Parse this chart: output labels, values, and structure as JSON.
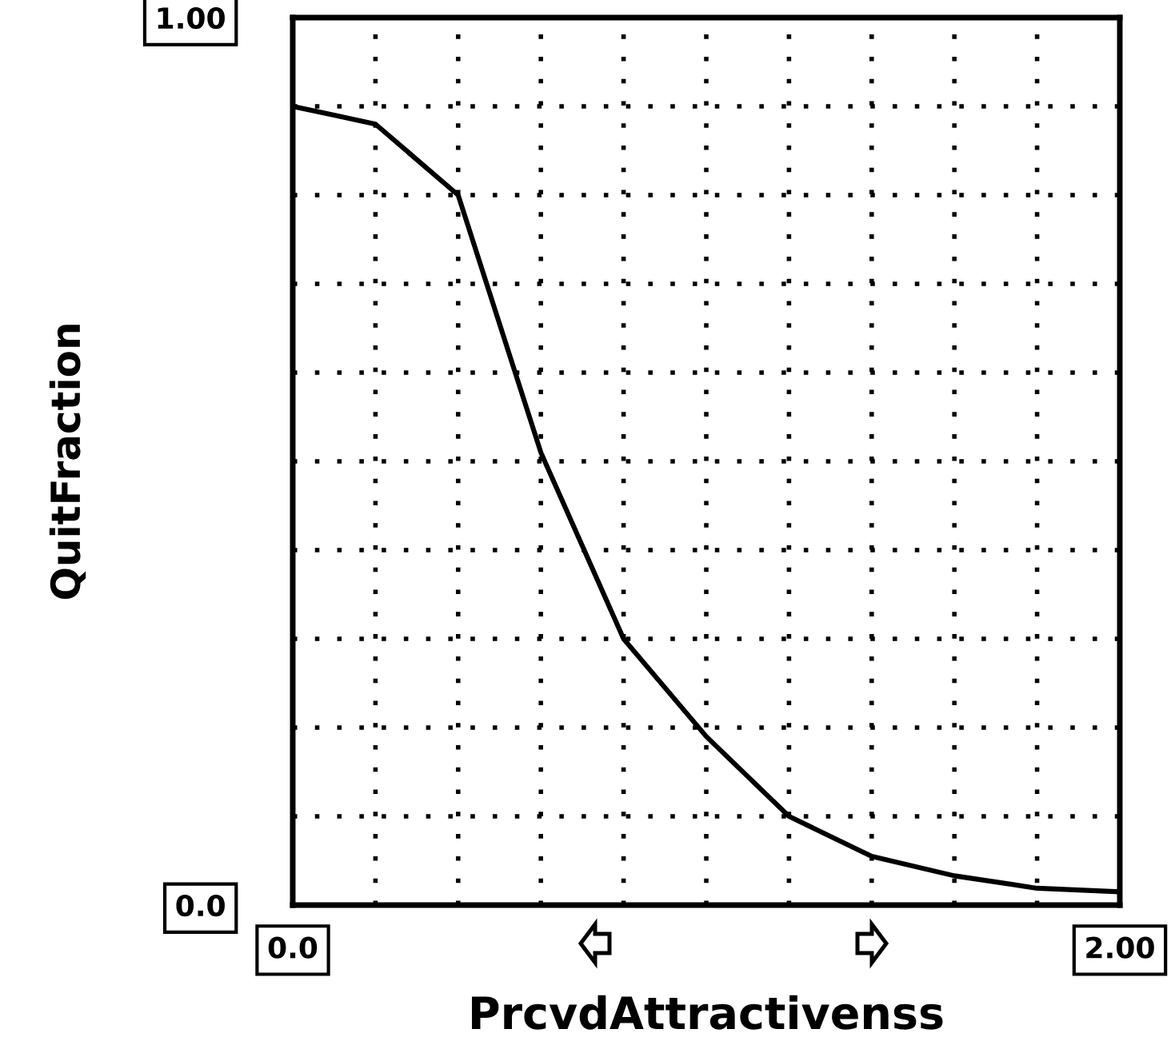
{
  "chart_data": {
    "type": "line",
    "xlabel": "PrcvdAttractivenss",
    "ylabel": "QuitFraction",
    "x": [
      0,
      0.1,
      0.2,
      0.3,
      0.4,
      0.6,
      0.8,
      1.0,
      1.2,
      1.4,
      1.6,
      1.8,
      2.0
    ],
    "series": [
      {
        "color": "#000000",
        "values": [
          0.9,
          0.89,
          0.88,
          0.84,
          0.8,
          0.51,
          0.3,
          0.19,
          0.1,
          0.055,
          0.033,
          0.019,
          0.015
        ]
      }
    ],
    "xlim": [
      0,
      2.0
    ],
    "ylim": [
      0,
      1.0
    ],
    "xticks": [
      {
        "value": 0,
        "label": "0.0"
      },
      {
        "value": 0.2,
        "label": null
      },
      {
        "value": 0.4,
        "label": null
      },
      {
        "value": 0.6,
        "label": null
      },
      {
        "value": 0.8,
        "label": null
      },
      {
        "value": 1.0,
        "label": null
      },
      {
        "value": 1.2,
        "label": null
      },
      {
        "value": 1.4,
        "label": null
      },
      {
        "value": 1.6,
        "label": null
      },
      {
        "value": 1.8,
        "label": null
      },
      {
        "value": 2.0,
        "label": "2.00"
      }
    ],
    "yticks": [
      {
        "value": 0,
        "label": "0.0"
      },
      {
        "value": 0.1,
        "label": null
      },
      {
        "value": 0.2,
        "label": null
      },
      {
        "value": 0.3,
        "label": null
      },
      {
        "value": 0.4,
        "label": null
      },
      {
        "value": 0.5,
        "label": null
      },
      {
        "value": 0.6,
        "label": null
      },
      {
        "value": 0.7,
        "label": null
      },
      {
        "value": 0.8,
        "label": null
      },
      {
        "value": 0.9,
        "label": null
      },
      {
        "value": 1.0,
        "label": "1.00"
      }
    ],
    "grid": true,
    "line_style": "solid",
    "marker": "none"
  }
}
